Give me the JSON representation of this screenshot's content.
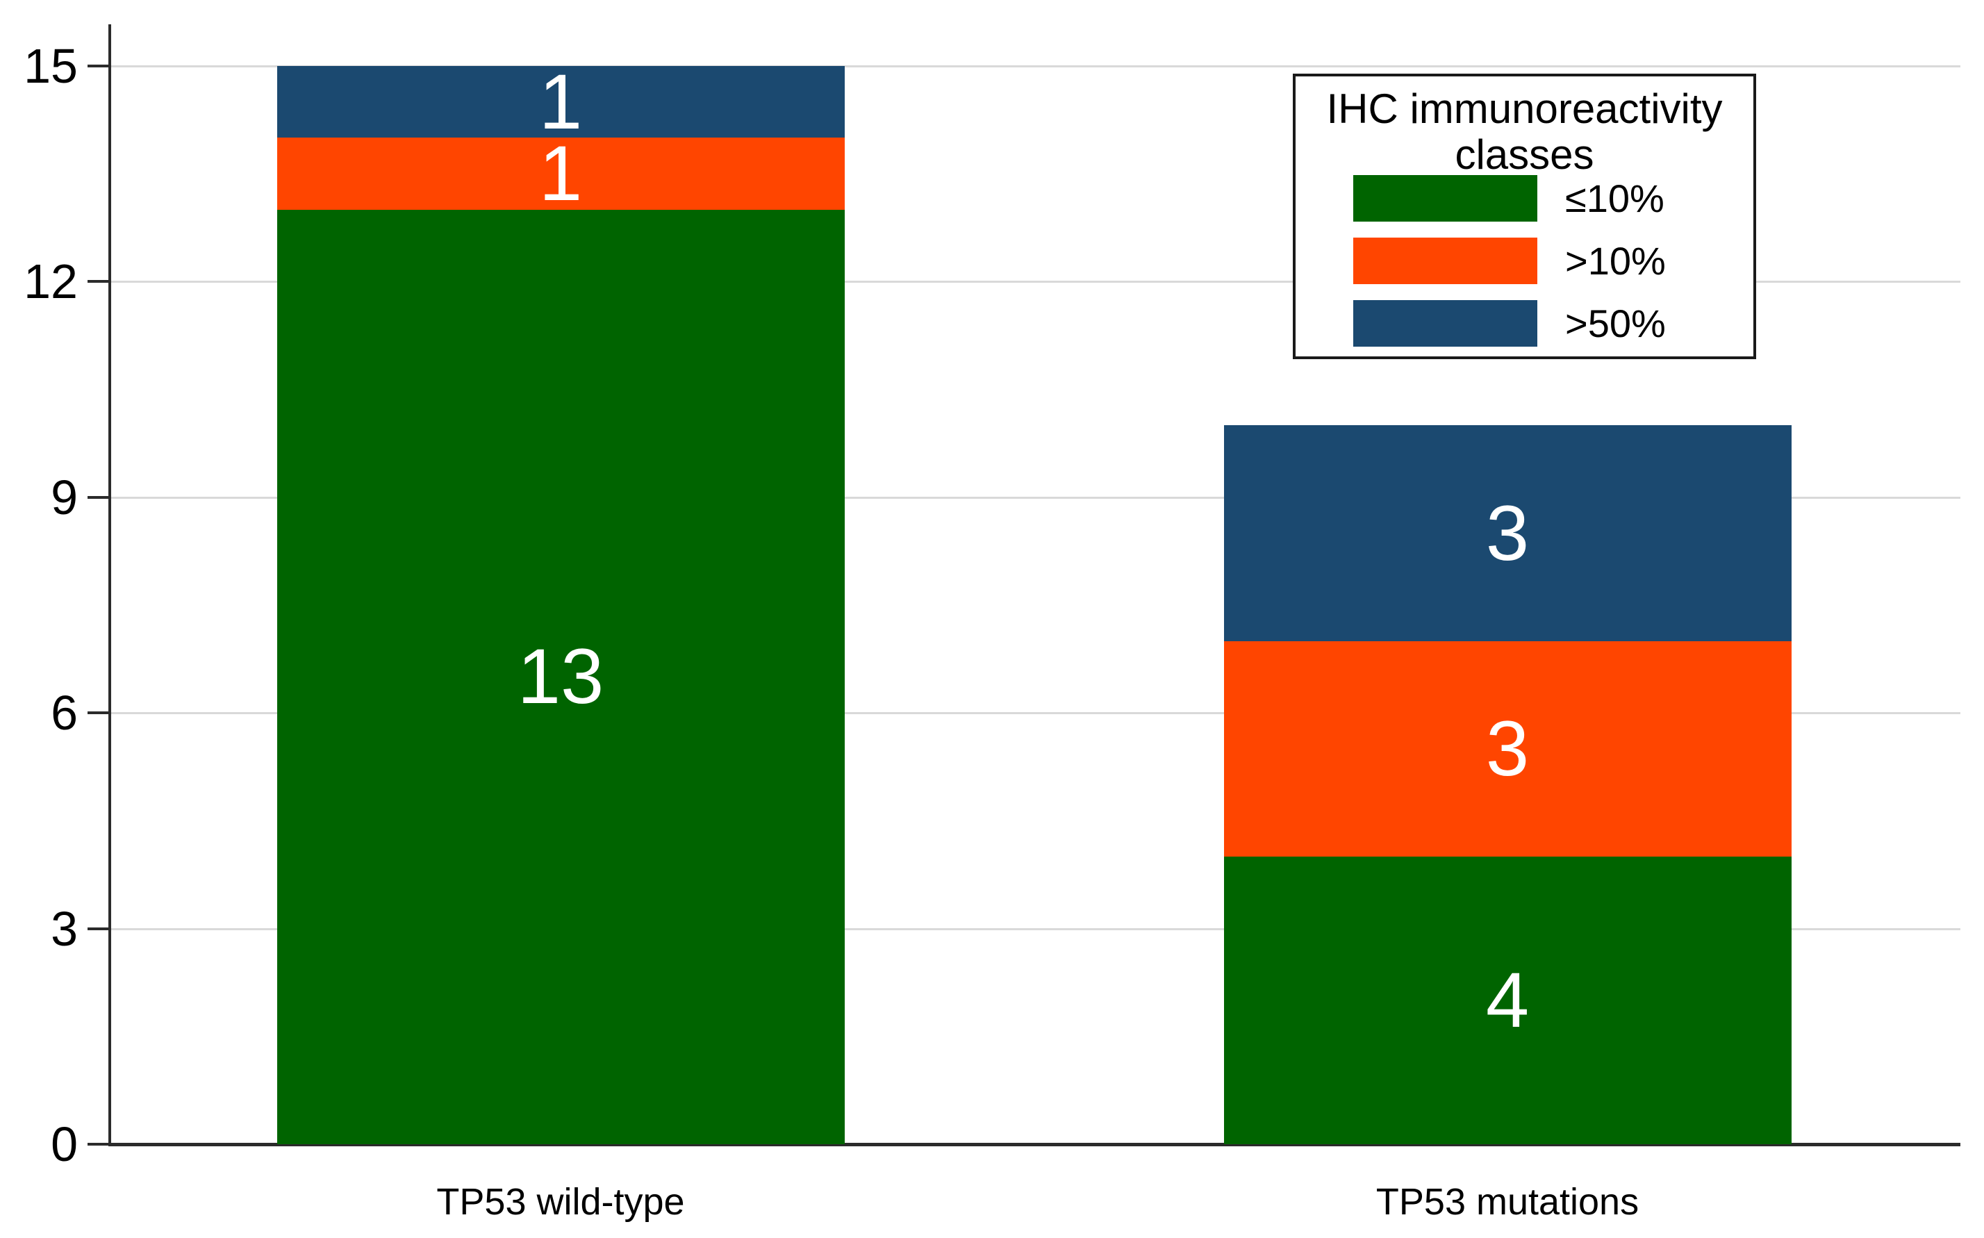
{
  "chart_data": {
    "type": "bar",
    "stacked": true,
    "categories": [
      "TP53 wild-type",
      "TP53 mutations"
    ],
    "series": [
      {
        "name": "≤10%",
        "color": "#006400",
        "values": [
          13,
          4
        ]
      },
      {
        "name": ">10%",
        "color": "#FF4500",
        "values": [
          1,
          3
        ]
      },
      {
        "name": ">50%",
        "color": "#1B4970",
        "values": [
          1,
          3
        ]
      }
    ],
    "stack_order": "first series at bottom",
    "bar_totals": [
      15,
      10
    ],
    "value_labels_shown": true,
    "value_label_color": "#ffffff",
    "xlabel": "",
    "ylabel": "",
    "y_ticks": [
      0,
      3,
      6,
      9,
      12,
      15
    ],
    "ylim": [
      0,
      15
    ],
    "grid": true,
    "gridline_color": "#d9d9d9",
    "axis_color": "#2b2b2b",
    "legend": {
      "title": "IHC immunoreactivity classes",
      "position": "top-right",
      "border": true
    }
  }
}
